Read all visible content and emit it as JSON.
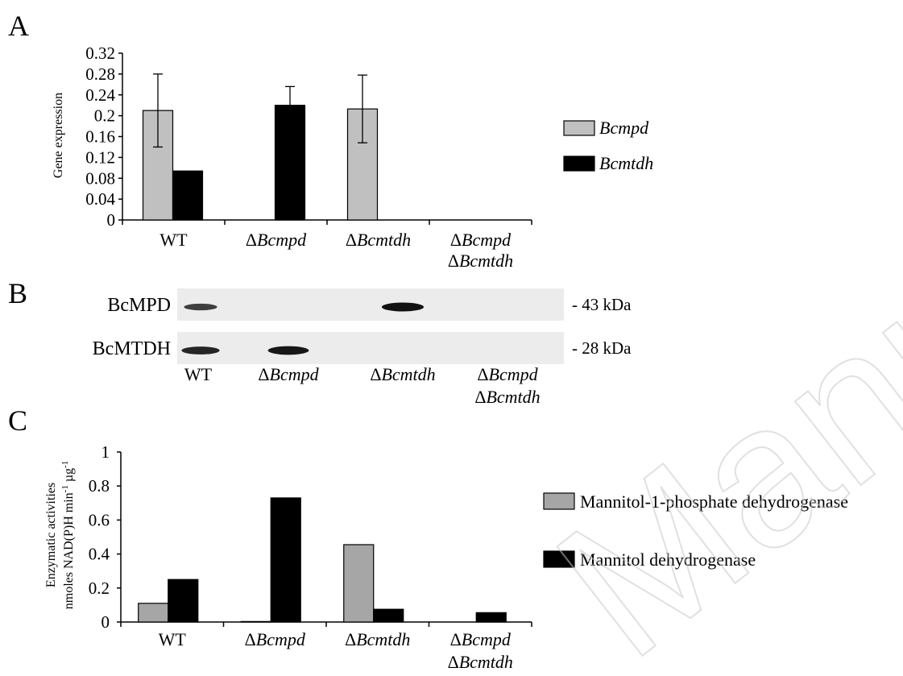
{
  "watermark": "Manuscript",
  "panels": {
    "A": {
      "letter": "A"
    },
    "B": {
      "letter": "B",
      "rows": [
        {
          "name": "BcMPD",
          "kda": "- 43 kDa",
          "bands": [
            0.55,
            0,
            1.0,
            0
          ]
        },
        {
          "name": "BcMTDH",
          "kda": "- 28 kDa",
          "bands": [
            0.8,
            0.95,
            0,
            0
          ]
        }
      ],
      "lanes": [
        {
          "prefix": "",
          "main": "WT",
          "second_prefix": "",
          "second": ""
        },
        {
          "prefix": "Δ",
          "main": "Bcmpd",
          "second_prefix": "",
          "second": ""
        },
        {
          "prefix": "Δ",
          "main": "Bcmtdh",
          "second_prefix": "",
          "second": ""
        },
        {
          "prefix": "Δ",
          "main": "Bcmpd",
          "second_prefix": "Δ",
          "second": "Bcmtdh"
        }
      ]
    },
    "C": {
      "letter": "C"
    }
  },
  "chart_data": [
    {
      "panel": "A",
      "type": "bar",
      "categories": [
        {
          "prefix": "",
          "main": "WT",
          "second_prefix": "",
          "second": ""
        },
        {
          "prefix": "Δ",
          "main": "Bcmpd",
          "second_prefix": "",
          "second": ""
        },
        {
          "prefix": "Δ",
          "main": "Bcmtdh",
          "second_prefix": "",
          "second": ""
        },
        {
          "prefix": "Δ",
          "main": "Bcmpd",
          "second_prefix": "Δ",
          "second": "Bcmtdh"
        }
      ],
      "series": [
        {
          "name": "Bcmpd",
          "color": "#c0c0c0",
          "values": [
            0.21,
            0,
            0.213,
            0
          ],
          "errors": [
            0.07,
            0,
            0.065,
            0
          ]
        },
        {
          "name": "Bcmtdh",
          "color": "#000000",
          "values": [
            0.094,
            0.22,
            0,
            0
          ],
          "errors": [
            0.002,
            0.036,
            0,
            0
          ]
        }
      ],
      "ylabel": "Gene expression",
      "ylim": [
        0,
        0.32
      ],
      "yticks": [
        0,
        0.04,
        0.08,
        0.12,
        0.16,
        0.2,
        0.24,
        0.28,
        0.32
      ],
      "ytick_labels": [
        "0",
        "0.04",
        "0.08",
        "0.12",
        "0.16",
        "0.2",
        "0.24",
        "0.28",
        "0.32"
      ],
      "legend_position": "right",
      "legend_italic": true,
      "grid": false
    },
    {
      "panel": "C",
      "type": "bar",
      "categories": [
        {
          "prefix": "",
          "main": "WT",
          "second_prefix": "",
          "second": ""
        },
        {
          "prefix": "Δ",
          "main": "Bcmpd",
          "second_prefix": "",
          "second": ""
        },
        {
          "prefix": "Δ",
          "main": "Bcmtdh",
          "second_prefix": "",
          "second": ""
        },
        {
          "prefix": "Δ",
          "main": "Bcmpd",
          "second_prefix": "Δ",
          "second": "Bcmtdh"
        }
      ],
      "series": [
        {
          "name": "Mannitol-1-phosphate dehydrogenase",
          "color": "#a6a6a6",
          "values": [
            0.11,
            0.003,
            0.455,
            0
          ]
        },
        {
          "name": "Mannitol dehydrogenase",
          "color": "#000000",
          "values": [
            0.25,
            0.73,
            0.075,
            0.055
          ]
        }
      ],
      "ylabel_line1": "Enzymatic activities",
      "ylabel_line2": "nmoles NAD(P)H min",
      "ylabel_sup1": "-1",
      "ylabel_unit": " µg",
      "ylabel_sup2": "-1",
      "ylim": [
        0,
        1
      ],
      "yticks": [
        0,
        0.2,
        0.4,
        0.6,
        0.8,
        1
      ],
      "ytick_labels": [
        "0",
        "0.2",
        "0.4",
        "0.6",
        "0.8",
        "1"
      ],
      "legend_position": "right",
      "legend_italic": false,
      "grid": false
    }
  ]
}
